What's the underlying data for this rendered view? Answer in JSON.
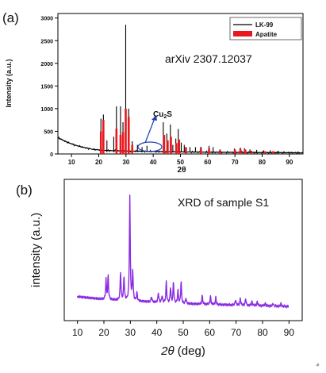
{
  "chart_data": [
    {
      "panel": "(a)",
      "type": "line",
      "xlabel": "2θ",
      "ylabel": "Intensity (a.u.)",
      "xlim": [
        5,
        95
      ],
      "ylim": [
        0,
        3100
      ],
      "xticks": [
        10,
        20,
        30,
        40,
        50,
        60,
        70,
        80,
        90
      ],
      "yticks": [
        0,
        500,
        1000,
        1500,
        2000,
        2500,
        3000
      ],
      "annotation": "arXiv 2307.12037",
      "marker_label": "Cu₂S",
      "legend": [
        "LK-99",
        "Apatite"
      ],
      "legend_position": "top-right",
      "background": [
        [
          5,
          360
        ],
        [
          8,
          270
        ],
        [
          11,
          200
        ],
        [
          14,
          150
        ],
        [
          18,
          100
        ],
        [
          22,
          80
        ],
        [
          26,
          70
        ],
        [
          30,
          65
        ],
        [
          35,
          60
        ],
        [
          40,
          55
        ],
        [
          50,
          45
        ],
        [
          60,
          40
        ],
        [
          70,
          35
        ],
        [
          80,
          30
        ],
        [
          90,
          28
        ],
        [
          95,
          25
        ]
      ],
      "peaks_lk99": [
        [
          20.8,
          780
        ],
        [
          21.7,
          870
        ],
        [
          23.0,
          300
        ],
        [
          25.5,
          380
        ],
        [
          26.5,
          1050
        ],
        [
          28.0,
          1050
        ],
        [
          28.9,
          700
        ],
        [
          29.9,
          2850
        ],
        [
          31.0,
          1000
        ],
        [
          32.3,
          280
        ],
        [
          34.2,
          200
        ],
        [
          35.9,
          150
        ],
        [
          37.7,
          180
        ],
        [
          43.7,
          700
        ],
        [
          45.0,
          450
        ],
        [
          46.3,
          650
        ],
        [
          47.2,
          200
        ],
        [
          48.3,
          340
        ],
        [
          49.2,
          550
        ],
        [
          50.3,
          250
        ],
        [
          51.4,
          200
        ],
        [
          53.5,
          150
        ],
        [
          55.5,
          150
        ],
        [
          57.5,
          160
        ],
        [
          60.5,
          180
        ],
        [
          62.0,
          150
        ],
        [
          64.5,
          100
        ],
        [
          69.8,
          120
        ],
        [
          72.0,
          140
        ],
        [
          73.5,
          130
        ],
        [
          75.5,
          100
        ],
        [
          78.0,
          90
        ],
        [
          80.5,
          80
        ],
        [
          83.0,
          80
        ],
        [
          86.0,
          70
        ],
        [
          88.0,
          60
        ]
      ],
      "peaks_apatite": [
        [
          20.8,
          500
        ],
        [
          21.7,
          750
        ],
        [
          26.5,
          560
        ],
        [
          28.0,
          420
        ],
        [
          28.9,
          480
        ],
        [
          29.9,
          1000
        ],
        [
          31.0,
          820
        ],
        [
          32.3,
          200
        ],
        [
          44.0,
          420
        ],
        [
          45.3,
          300
        ],
        [
          46.5,
          380
        ],
        [
          48.5,
          240
        ],
        [
          49.5,
          320
        ],
        [
          52.0,
          150
        ],
        [
          57.5,
          130
        ],
        [
          60.5,
          120
        ],
        [
          64.5,
          80
        ],
        [
          70.0,
          100
        ],
        [
          72.0,
          110
        ],
        [
          73.8,
          100
        ],
        [
          76.0,
          70
        ],
        [
          81.0,
          60
        ],
        [
          84.0,
          60
        ]
      ]
    },
    {
      "panel": "(b)",
      "type": "line",
      "series_name": "XRD of sample S1",
      "xlabel": "2θ (deg)",
      "ylabel": "intensity (a.u.)",
      "xlim": [
        5,
        95
      ],
      "ylim": [
        0,
        1.0
      ],
      "xticks": [
        10,
        20,
        30,
        40,
        50,
        60,
        70,
        80,
        90
      ],
      "background": [
        [
          10,
          0.17
        ],
        [
          20,
          0.15
        ],
        [
          30,
          0.14
        ],
        [
          50,
          0.12
        ],
        [
          70,
          0.11
        ],
        [
          90,
          0.1
        ]
      ],
      "peaks": [
        [
          20.8,
          0.14
        ],
        [
          21.6,
          0.17
        ],
        [
          26.3,
          0.2
        ],
        [
          27.6,
          0.17
        ],
        [
          29.8,
          0.74
        ],
        [
          30.9,
          0.21
        ],
        [
          32.5,
          0.06
        ],
        [
          38.0,
          0.04
        ],
        [
          40.6,
          0.07
        ],
        [
          42.0,
          0.05
        ],
        [
          43.6,
          0.15
        ],
        [
          45.2,
          0.11
        ],
        [
          46.3,
          0.15
        ],
        [
          48.0,
          0.09
        ],
        [
          49.2,
          0.16
        ],
        [
          51.0,
          0.04
        ],
        [
          57.2,
          0.06
        ],
        [
          60.3,
          0.06
        ],
        [
          62.3,
          0.05
        ],
        [
          69.8,
          0.04
        ],
        [
          71.6,
          0.05
        ],
        [
          73.6,
          0.05
        ],
        [
          76.0,
          0.03
        ],
        [
          78.0,
          0.03
        ],
        [
          81.0,
          0.02
        ],
        [
          84.0,
          0.02
        ],
        [
          87.0,
          0.02
        ]
      ]
    }
  ],
  "colors": {
    "lk99": "#000000",
    "apatite": "#e8191e",
    "s1": "#8a2be2",
    "cu2s_marker": "#1c3fb5"
  }
}
